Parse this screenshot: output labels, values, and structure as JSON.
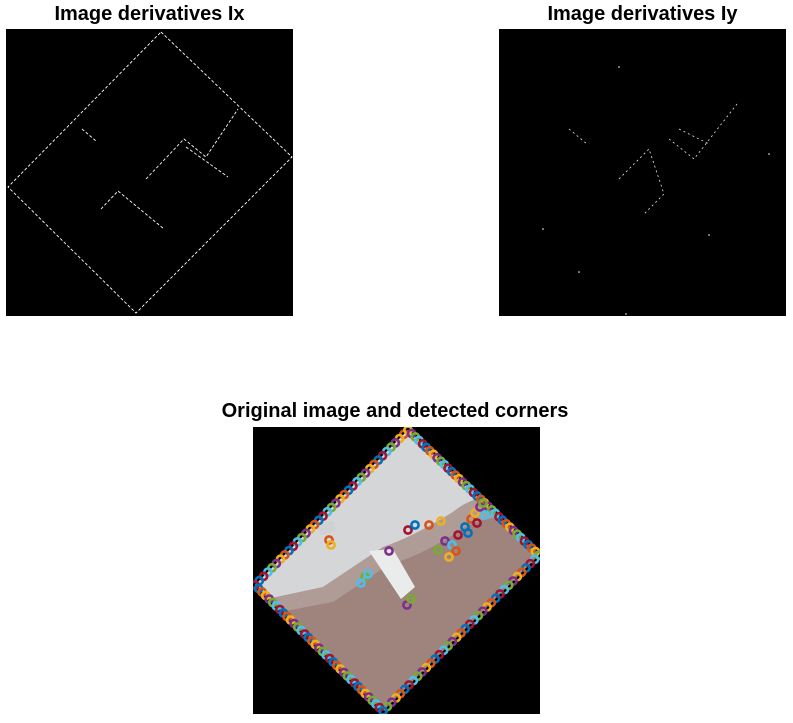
{
  "figure": {
    "panels": [
      {
        "title": "Image derivatives Ix"
      },
      {
        "title": "Image derivatives Iy"
      },
      {
        "title": "Original image and detected corners"
      }
    ]
  },
  "colors": {
    "background": "#ffffff",
    "axes_background": "#000000",
    "edge_lines": "#ffffff",
    "wall": "#d4d6d8",
    "floor": "#9e847d",
    "marker_palette": [
      "#0072bd",
      "#d95319",
      "#edb120",
      "#7e2f8e",
      "#77ac30",
      "#4dbeee",
      "#a2142f"
    ]
  }
}
